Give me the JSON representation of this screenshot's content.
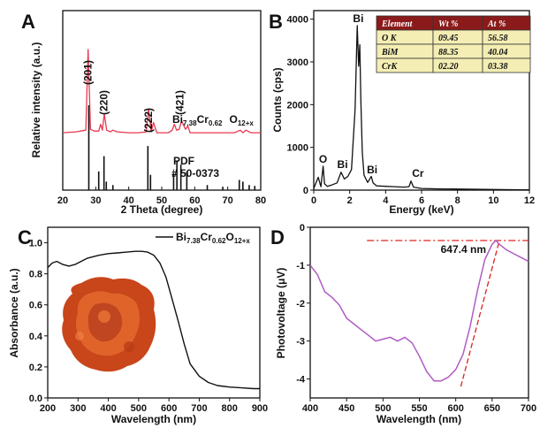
{
  "panel_labels": {
    "A": "A",
    "B": "B",
    "C": "C",
    "D": "D"
  },
  "colors": {
    "xrd": "#e8384f",
    "edx": "#111111",
    "absorb": "#111111",
    "photo": "#b05cc4",
    "fit": "#e02020",
    "table_header": "#8b1a1a",
    "table_cell": "#f4eeb4"
  },
  "chart_data": [
    {
      "type": "line",
      "panel": "A",
      "xlabel": "2 Theta (degree)",
      "ylabel": "Relative intensity (a.u.)",
      "xlim": [
        20,
        80
      ],
      "xticks": [
        20,
        30,
        40,
        50,
        60,
        70,
        80
      ],
      "sample_label": {
        "main": "Bi",
        "s1": "7.38",
        "mid": "Cr",
        "s2": "0.62",
        "end": "O",
        "s3": "12+x"
      },
      "pdf_label": "PDF",
      "pdf_number": "# 50-0373",
      "peak_labels": [
        {
          "text": "(201)",
          "x": 27.7
        },
        {
          "text": "(220)",
          "x": 32.5
        },
        {
          "text": "(222)",
          "x": 46.0
        },
        {
          "text": "(421)",
          "x": 55.5
        }
      ],
      "pattern_x": [
        20,
        24,
        27.0,
        27.7,
        28.4,
        29.5,
        30.9,
        31.5,
        32.0,
        32.6,
        33.3,
        34.5,
        35.2,
        36.5,
        40,
        43,
        45.3,
        46.0,
        46.8,
        47.5,
        48.5,
        52,
        53.2,
        53.8,
        54.5,
        55.3,
        56.0,
        57.2,
        57.9,
        58.6,
        62,
        67,
        72,
        73.8,
        74.6,
        75.5,
        77,
        80
      ],
      "pattern_y": [
        0.02,
        0.03,
        0.05,
        1.0,
        0.06,
        0.04,
        0.04,
        0.12,
        0.05,
        0.24,
        0.05,
        0.03,
        0.05,
        0.03,
        0.02,
        0.02,
        0.03,
        0.3,
        0.03,
        0.14,
        0.02,
        0.02,
        0.05,
        0.12,
        0.05,
        0.06,
        0.16,
        0.06,
        0.1,
        0.02,
        0.02,
        0.02,
        0.02,
        0.05,
        0.02,
        0.05,
        0.02,
        0.02
      ],
      "reference_lines": [
        {
          "x": 27.9,
          "h": 1.0
        },
        {
          "x": 30.9,
          "h": 0.22
        },
        {
          "x": 32.5,
          "h": 0.4
        },
        {
          "x": 33.2,
          "h": 0.1
        },
        {
          "x": 35.2,
          "h": 0.06
        },
        {
          "x": 45.8,
          "h": 0.52
        },
        {
          "x": 46.6,
          "h": 0.18
        },
        {
          "x": 53.6,
          "h": 0.2
        },
        {
          "x": 54.6,
          "h": 0.35
        },
        {
          "x": 55.8,
          "h": 0.3
        },
        {
          "x": 57.6,
          "h": 0.22
        },
        {
          "x": 63.8,
          "h": 0.06
        },
        {
          "x": 68.5,
          "h": 0.04
        },
        {
          "x": 73.5,
          "h": 0.12
        },
        {
          "x": 74.6,
          "h": 0.1
        },
        {
          "x": 76.5,
          "h": 0.06
        },
        {
          "x": 78.2,
          "h": 0.05
        }
      ]
    },
    {
      "type": "line",
      "panel": "B",
      "xlabel": "Energy (keV)",
      "ylabel": "Counts (cps)",
      "xlim": [
        0,
        12
      ],
      "ylim": [
        0,
        4200
      ],
      "xticks": [
        0,
        2,
        4,
        6,
        8,
        10,
        12
      ],
      "yticks": [
        0,
        1000,
        2000,
        3000,
        4000
      ],
      "x": [
        0,
        0.15,
        0.25,
        0.4,
        0.52,
        0.6,
        0.75,
        1.0,
        1.3,
        1.52,
        1.7,
        1.9,
        2.1,
        2.3,
        2.42,
        2.5,
        2.56,
        2.62,
        2.7,
        2.8,
        3.0,
        3.2,
        3.3,
        3.5,
        4.0,
        4.5,
        5.0,
        5.3,
        5.41,
        5.55,
        6.0,
        7.0,
        8.0,
        9.0,
        10.0,
        11.0,
        12.0
      ],
      "y": [
        40,
        200,
        300,
        80,
        560,
        150,
        90,
        120,
        170,
        420,
        260,
        320,
        480,
        1900,
        3850,
        2900,
        3400,
        2100,
        900,
        350,
        180,
        320,
        170,
        100,
        90,
        80,
        70,
        80,
        210,
        70,
        40,
        30,
        25,
        20,
        15,
        10,
        8
      ],
      "peak_labels": [
        {
          "text": "Bi",
          "x": 2.48,
          "y": 3930
        },
        {
          "text": "O",
          "x": 0.52,
          "y": 640
        },
        {
          "text": "Bi",
          "x": 1.6,
          "y": 520
        },
        {
          "text": "Bi",
          "x": 3.25,
          "y": 390
        },
        {
          "text": "Cr",
          "x": 5.8,
          "y": 310
        }
      ],
      "table": {
        "headers": [
          "Element",
          "Wt %",
          "At %"
        ],
        "rows": [
          [
            "O K",
            "09.45",
            "56.58"
          ],
          [
            "BiM",
            "88.35",
            "40.04"
          ],
          [
            "CrK",
            "02.20",
            "03.38"
          ]
        ]
      }
    },
    {
      "type": "line",
      "panel": "C",
      "xlabel": "Wavelength (nm)",
      "ylabel": "Absorbance (a.u.)",
      "xlim": [
        200,
        900
      ],
      "ylim": [
        0,
        1.1
      ],
      "xticks": [
        200,
        300,
        400,
        500,
        600,
        700,
        800,
        900
      ],
      "yticks": [
        0.0,
        0.2,
        0.4,
        0.6,
        0.8,
        1.0
      ],
      "legend": {
        "main": "Bi",
        "s1": "7.38",
        "mid": "Cr",
        "s2": "0.62",
        "end": "O",
        "s3": "12+x"
      },
      "x": [
        200,
        215,
        230,
        250,
        270,
        290,
        310,
        330,
        350,
        370,
        400,
        430,
        460,
        490,
        510,
        530,
        550,
        570,
        590,
        610,
        630,
        650,
        670,
        700,
        730,
        760,
        800,
        840,
        880,
        900
      ],
      "y": [
        0.84,
        0.87,
        0.88,
        0.86,
        0.85,
        0.86,
        0.88,
        0.9,
        0.91,
        0.92,
        0.93,
        0.935,
        0.94,
        0.945,
        0.945,
        0.94,
        0.92,
        0.87,
        0.78,
        0.64,
        0.5,
        0.35,
        0.22,
        0.14,
        0.1,
        0.08,
        0.07,
        0.065,
        0.06,
        0.06
      ]
    },
    {
      "type": "line",
      "panel": "D",
      "xlabel": "Wavelength (nm)",
      "ylabel": "Photovoltage (μV)",
      "xlim": [
        400,
        700
      ],
      "ylim": [
        -4.5,
        0
      ],
      "xticks": [
        400,
        450,
        500,
        550,
        600,
        650,
        700
      ],
      "yticks": [
        0,
        -1,
        -2,
        -3,
        -4
      ],
      "annotation": "647.4 nm",
      "x": [
        400,
        410,
        420,
        430,
        440,
        450,
        460,
        470,
        480,
        490,
        500,
        510,
        520,
        530,
        540,
        550,
        560,
        570,
        580,
        590,
        600,
        610,
        620,
        630,
        640,
        650,
        655,
        660,
        670,
        680,
        690,
        700
      ],
      "y": [
        -1.0,
        -1.25,
        -1.7,
        -1.85,
        -2.05,
        -2.4,
        -2.55,
        -2.7,
        -2.85,
        -3.0,
        -2.95,
        -2.9,
        -3.0,
        -2.9,
        -3.05,
        -3.4,
        -3.8,
        -4.05,
        -4.05,
        -3.95,
        -3.75,
        -3.35,
        -2.6,
        -1.65,
        -0.85,
        -0.45,
        -0.35,
        -0.45,
        -0.6,
        -0.7,
        -0.8,
        -0.9
      ],
      "fit_line": {
        "x": [
          607,
          660
        ],
        "y": [
          -4.2,
          -0.35
        ]
      },
      "baseline": {
        "x": [
          478,
          700
        ],
        "y": [
          -0.35,
          -0.35
        ]
      }
    }
  ]
}
